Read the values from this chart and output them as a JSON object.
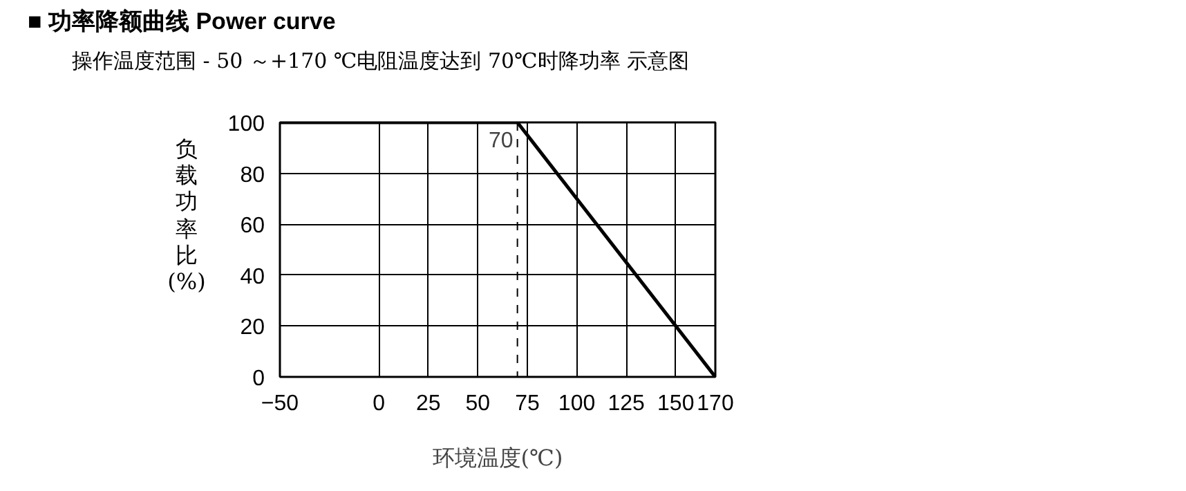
{
  "chart_data": {
    "type": "line",
    "title": "■ 功率降额曲线 Power curve",
    "subtitle": "操作温度范围 - 50 ～+170 ℃电阻温度达到 70℃时降功率 示意图",
    "xlabel": "环境温度(℃)",
    "ylabel": "负载功率比(%)",
    "x": [
      -50,
      70,
      170
    ],
    "series": [
      {
        "color": "#000000",
        "values": [
          100,
          100,
          0
        ]
      }
    ],
    "xlim": [
      -50,
      170
    ],
    "ylim": [
      0,
      100
    ],
    "xticks": [
      -50,
      0,
      25,
      50,
      75,
      100,
      125,
      150,
      170
    ],
    "yticks": [
      0,
      20,
      40,
      60,
      80,
      100
    ],
    "grid": true,
    "marker": "none",
    "line_style": "solid",
    "ref_lines": [
      {
        "axis": "x",
        "value": 70,
        "label": "70",
        "line_style": "dashed",
        "color": "#000000"
      }
    ]
  }
}
